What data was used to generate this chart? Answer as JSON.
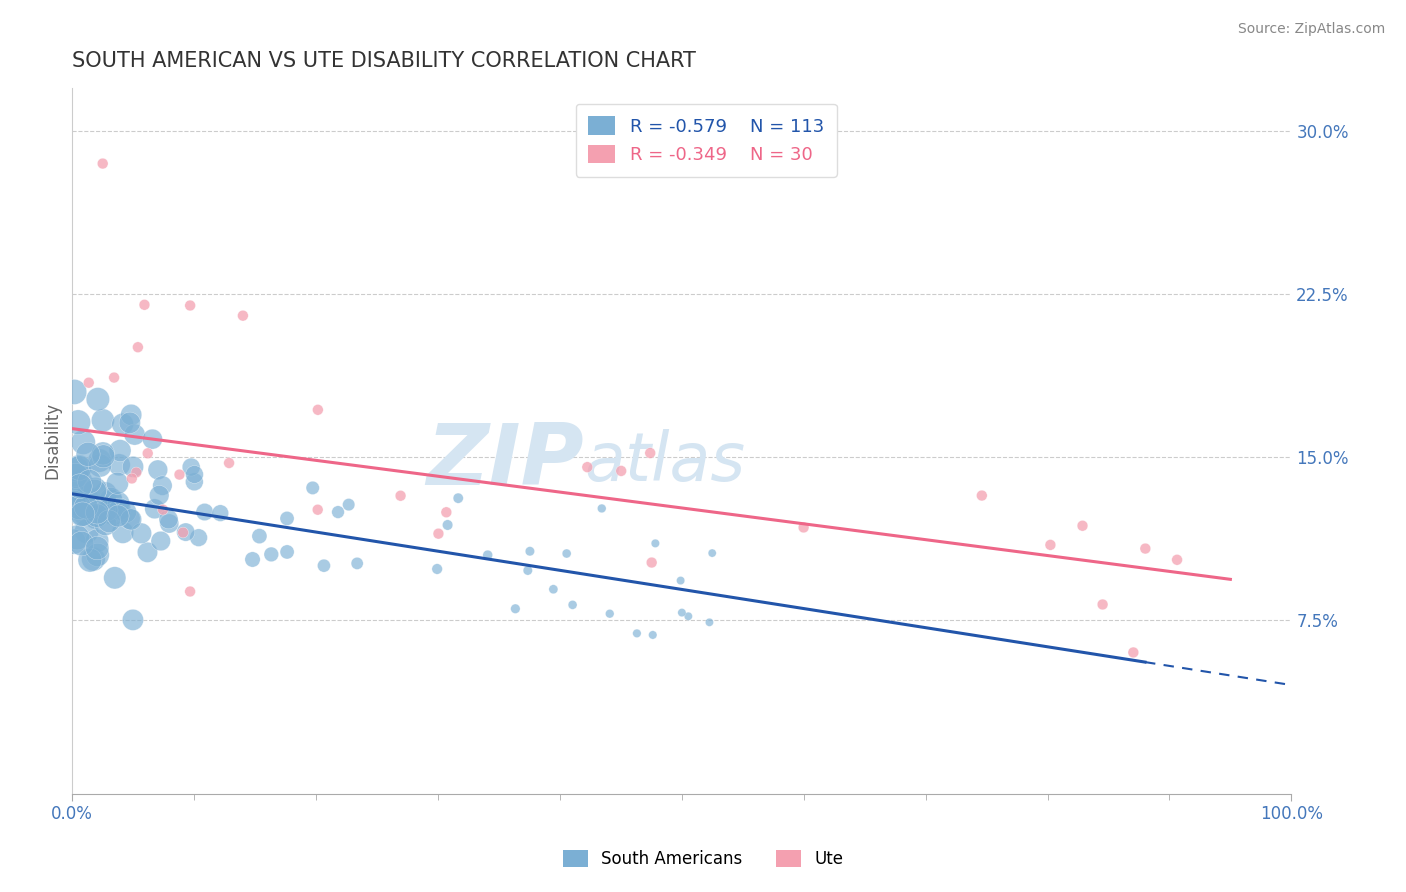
{
  "title": "SOUTH AMERICAN VS UTE DISABILITY CORRELATION CHART",
  "source": "Source: ZipAtlas.com",
  "ylabel": "Disability",
  "xlim": [
    0.0,
    1.0
  ],
  "ylim": [
    -0.005,
    0.32
  ],
  "yticks": [
    0.075,
    0.15,
    0.225,
    0.3
  ],
  "ytick_labels": [
    "7.5%",
    "15.0%",
    "22.5%",
    "30.0%"
  ],
  "blue_color": "#7BAFD4",
  "pink_color": "#F4A0B0",
  "blue_line_color": "#2255AA",
  "pink_line_color": "#EE6688",
  "R_blue": -0.579,
  "N_blue": 113,
  "R_pink": -0.349,
  "N_pink": 30,
  "title_fontsize": 15,
  "axis_color": "#4477BB",
  "watermark_color": "#D5E5F2",
  "background_color": "#FFFFFF",
  "blue_intercept": 0.133,
  "blue_slope": -0.088,
  "pink_intercept": 0.163,
  "pink_slope": -0.073
}
